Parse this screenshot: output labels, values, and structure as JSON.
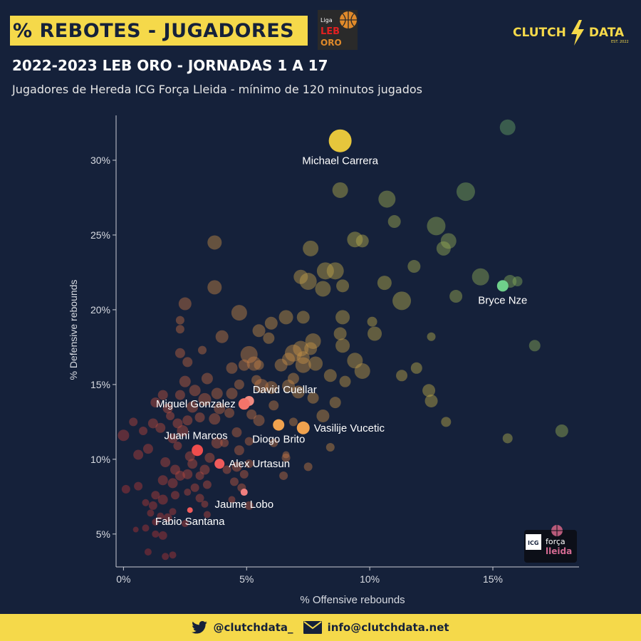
{
  "header": {
    "title": "% REBOTES - JUGADORES",
    "headline": "2022-2023 LEB ORO - JORNADAS 1 A 17",
    "subtitle": "Jugadores de Hereda ICG Força Lleida - mínimo de 120 minutos jugados"
  },
  "league_logo": {
    "line1": "Liga",
    "line2": "LEB",
    "line3": "ORO",
    "icon": "basketball-icon"
  },
  "brand": {
    "left": "CLUTCH",
    "right": "DATA",
    "sub": "EST. 2022",
    "icon": "lightning-bolt-icon"
  },
  "team_logo": {
    "line1": "ICG",
    "line2": "força",
    "line3": "lleida",
    "icon": "basketball-icon"
  },
  "footer": {
    "twitter": "@clutchdata_",
    "email": "info@clutchdata.net",
    "twitter_icon": "twitter-bird-icon",
    "email_icon": "envelope-icon"
  },
  "colors": {
    "accent": "#f5d94a",
    "background": "#15213a",
    "highlight_yellow": "#e6c63c"
  },
  "chart_data": {
    "type": "scatter",
    "xlabel": "% Offensive rebounds",
    "ylabel": "% Defensive rebounds",
    "xlim": [
      -0.3,
      18.5
    ],
    "ylim": [
      2.8,
      33
    ],
    "x_ticks": [
      {
        "value": 0,
        "label": "0%"
      },
      {
        "value": 5,
        "label": "5%"
      },
      {
        "value": 10,
        "label": "10%"
      },
      {
        "value": 15,
        "label": "15%"
      }
    ],
    "y_ticks": [
      {
        "value": 5,
        "label": "5%"
      },
      {
        "value": 10,
        "label": "10%"
      },
      {
        "value": 15,
        "label": "15%"
      },
      {
        "value": 20,
        "label": "20%"
      },
      {
        "value": 25,
        "label": "25%"
      },
      {
        "value": 30,
        "label": "30%"
      }
    ],
    "grid": false,
    "highlighted": [
      {
        "name": "Michael Carrera",
        "x": 8.8,
        "y": 31.3,
        "size": 16,
        "color": "#e6c63c",
        "label_pos": "below"
      },
      {
        "name": "Bryce Nze",
        "x": 15.4,
        "y": 21.6,
        "size": 8,
        "color": "#6fcf8a",
        "label_pos": "below"
      },
      {
        "name": "David Cuellar",
        "x": 5.1,
        "y": 13.9,
        "size": 7,
        "color": "#f08a80",
        "label_pos": "above-right"
      },
      {
        "name": "Miguel Gonzalez",
        "x": 4.9,
        "y": 13.7,
        "size": 8,
        "color": "#f2746a",
        "label_pos": "left"
      },
      {
        "name": "Vasilije Vucetic",
        "x": 7.3,
        "y": 12.1,
        "size": 9,
        "color": "#f0a24e",
        "label_pos": "right"
      },
      {
        "name": "Diogo Brito",
        "x": 6.3,
        "y": 12.3,
        "size": 8,
        "color": "#f0a24e",
        "label_pos": "below"
      },
      {
        "name": "Juani Marcos",
        "x": 3.0,
        "y": 10.6,
        "size": 8,
        "color": "#ef4d4d",
        "label_pos": "above-left"
      },
      {
        "name": "Alex Urtasun",
        "x": 3.9,
        "y": 9.7,
        "size": 7,
        "color": "#ef5b5b",
        "label_pos": "right"
      },
      {
        "name": "Jaume Lobo",
        "x": 4.9,
        "y": 7.8,
        "size": 5,
        "color": "#f07f7f",
        "label_pos": "below"
      },
      {
        "name": "Fabio Santana",
        "x": 2.7,
        "y": 6.6,
        "size": 4,
        "color": "#ef5b5b",
        "label_pos": "below"
      }
    ],
    "background_points": [
      [
        15.6,
        32.2,
        11
      ],
      [
        10.7,
        27.4,
        12
      ],
      [
        13.9,
        27.9,
        13
      ],
      [
        8.8,
        28.0,
        11
      ],
      [
        11.0,
        25.9,
        9
      ],
      [
        12.7,
        25.6,
        13
      ],
      [
        13.2,
        24.6,
        11
      ],
      [
        13.0,
        24.1,
        10
      ],
      [
        9.4,
        24.7,
        11
      ],
      [
        9.7,
        24.6,
        9
      ],
      [
        7.6,
        24.1,
        11
      ],
      [
        8.2,
        22.6,
        12
      ],
      [
        8.6,
        22.6,
        12
      ],
      [
        7.2,
        22.2,
        10
      ],
      [
        7.5,
        21.9,
        12
      ],
      [
        8.9,
        21.6,
        9
      ],
      [
        8.1,
        21.4,
        11
      ],
      [
        10.6,
        21.8,
        10
      ],
      [
        11.8,
        22.9,
        9
      ],
      [
        14.5,
        22.2,
        12
      ],
      [
        16.0,
        21.9,
        7
      ],
      [
        13.5,
        20.9,
        9
      ],
      [
        11.3,
        20.6,
        13
      ],
      [
        15.7,
        21.9,
        9
      ],
      [
        3.7,
        24.5,
        10
      ],
      [
        3.7,
        21.5,
        10
      ],
      [
        2.5,
        20.4,
        9
      ],
      [
        4.7,
        19.8,
        11
      ],
      [
        2.3,
        19.3,
        6
      ],
      [
        2.3,
        18.7,
        6
      ],
      [
        4.0,
        18.2,
        9
      ],
      [
        5.5,
        18.6,
        9
      ],
      [
        6.0,
        19.1,
        9
      ],
      [
        6.6,
        19.5,
        10
      ],
      [
        7.3,
        19.5,
        9
      ],
      [
        8.9,
        19.5,
        10
      ],
      [
        10.1,
        19.2,
        7
      ],
      [
        10.2,
        18.4,
        10
      ],
      [
        8.8,
        18.4,
        9
      ],
      [
        7.7,
        17.9,
        11
      ],
      [
        7.2,
        17.4,
        11
      ],
      [
        6.9,
        17.1,
        12
      ],
      [
        7.6,
        17.4,
        9
      ],
      [
        8.9,
        17.6,
        10
      ],
      [
        7.3,
        16.8,
        9
      ],
      [
        7.3,
        16.3,
        11
      ],
      [
        6.7,
        16.7,
        9
      ],
      [
        5.9,
        18.1,
        8
      ],
      [
        2.3,
        17.1,
        7
      ],
      [
        3.2,
        17.3,
        6
      ],
      [
        5.1,
        17.0,
        12
      ],
      [
        5.3,
        16.4,
        10
      ],
      [
        4.9,
        16.3,
        8
      ],
      [
        4.4,
        16.1,
        8
      ],
      [
        5.5,
        16.3,
        7
      ],
      [
        6.4,
        16.3,
        9
      ],
      [
        6.9,
        15.4,
        8
      ],
      [
        7.8,
        16.4,
        10
      ],
      [
        9.4,
        16.6,
        11
      ],
      [
        9.7,
        15.9,
        11
      ],
      [
        8.4,
        15.6,
        9
      ],
      [
        9.0,
        15.2,
        8
      ],
      [
        11.3,
        15.6,
        8
      ],
      [
        11.9,
        16.1,
        8
      ],
      [
        12.4,
        14.6,
        9
      ],
      [
        12.5,
        13.9,
        9
      ],
      [
        12.5,
        18.2,
        6
      ],
      [
        16.7,
        17.6,
        8
      ],
      [
        8.6,
        13.8,
        8
      ],
      [
        8.1,
        12.9,
        9
      ],
      [
        7.7,
        14.1,
        8
      ],
      [
        7.1,
        14.5,
        9
      ],
      [
        6.7,
        14.9,
        9
      ],
      [
        6.0,
        14.8,
        9
      ],
      [
        5.6,
        14.9,
        10
      ],
      [
        5.4,
        15.3,
        7
      ],
      [
        4.7,
        15.0,
        7
      ],
      [
        4.4,
        14.4,
        8
      ],
      [
        3.8,
        14.4,
        8
      ],
      [
        3.3,
        14.0,
        9
      ],
      [
        2.9,
        14.6,
        8
      ],
      [
        2.6,
        16.5,
        7
      ],
      [
        3.4,
        15.4,
        8
      ],
      [
        2.5,
        15.2,
        8
      ],
      [
        2.3,
        14.3,
        7
      ],
      [
        1.6,
        14.3,
        7
      ],
      [
        1.3,
        13.8,
        7
      ],
      [
        1.8,
        13.4,
        7
      ],
      [
        2.8,
        13.5,
        8
      ],
      [
        3.9,
        13.4,
        8
      ],
      [
        4.3,
        13.1,
        7
      ],
      [
        5.2,
        13.0,
        7
      ],
      [
        5.5,
        12.6,
        8
      ],
      [
        6.1,
        13.6,
        7
      ],
      [
        3.7,
        12.7,
        8
      ],
      [
        3.1,
        12.8,
        7
      ],
      [
        2.6,
        12.6,
        7
      ],
      [
        2.2,
        12.4,
        7
      ],
      [
        1.5,
        12.1,
        7
      ],
      [
        1.2,
        12.4,
        7
      ],
      [
        0.8,
        11.9,
        6
      ],
      [
        2.0,
        11.4,
        7
      ],
      [
        2.4,
        11.9,
        8
      ],
      [
        3.8,
        11.1,
        8
      ],
      [
        4.6,
        11.8,
        7
      ],
      [
        5.1,
        11.2,
        6
      ],
      [
        0.0,
        11.6,
        8
      ],
      [
        1.0,
        10.7,
        7
      ],
      [
        0.6,
        10.3,
        7
      ],
      [
        2.2,
        10.9,
        6
      ],
      [
        2.7,
        10.2,
        7
      ],
      [
        3.5,
        10.1,
        7
      ],
      [
        4.1,
        11.1,
        6
      ],
      [
        4.7,
        10.6,
        7
      ],
      [
        6.1,
        11.1,
        6
      ],
      [
        6.6,
        10.1,
        6
      ],
      [
        1.7,
        9.8,
        7
      ],
      [
        2.1,
        9.3,
        7
      ],
      [
        2.8,
        9.7,
        7
      ],
      [
        3.3,
        9.3,
        7
      ],
      [
        4.2,
        9.3,
        6
      ],
      [
        4.6,
        9.5,
        7
      ],
      [
        5.1,
        9.7,
        6
      ],
      [
        2.3,
        8.9,
        7
      ],
      [
        2.6,
        9.0,
        7
      ],
      [
        3.1,
        8.9,
        6
      ],
      [
        1.6,
        8.6,
        7
      ],
      [
        2.0,
        8.4,
        7
      ],
      [
        2.9,
        8.1,
        6
      ],
      [
        3.4,
        8.3,
        6
      ],
      [
        4.5,
        8.5,
        6
      ],
      [
        4.8,
        8.1,
        6
      ],
      [
        4.9,
        9.0,
        6
      ],
      [
        0.6,
        8.2,
        6
      ],
      [
        0.1,
        8.0,
        6
      ],
      [
        1.3,
        7.6,
        6
      ],
      [
        1.6,
        7.3,
        7
      ],
      [
        2.1,
        7.6,
        6
      ],
      [
        2.6,
        7.8,
        5
      ],
      [
        3.1,
        7.4,
        6
      ],
      [
        3.3,
        7.0,
        5
      ],
      [
        4.4,
        7.3,
        5
      ],
      [
        0.9,
        7.1,
        5
      ],
      [
        1.2,
        6.9,
        6
      ],
      [
        2.0,
        6.5,
        5
      ],
      [
        3.4,
        6.3,
        5
      ],
      [
        5.1,
        6.9,
        6
      ],
      [
        1.1,
        6.4,
        5
      ],
      [
        1.5,
        6.2,
        5
      ],
      [
        1.8,
        6.1,
        6
      ],
      [
        0.9,
        5.4,
        5
      ],
      [
        0.5,
        5.3,
        4
      ],
      [
        1.3,
        5.8,
        5
      ],
      [
        2.5,
        5.7,
        5
      ],
      [
        1.3,
        5.0,
        5
      ],
      [
        1.6,
        4.9,
        6
      ],
      [
        1.0,
        3.8,
        5
      ],
      [
        1.7,
        3.5,
        5
      ],
      [
        2.0,
        3.6,
        5
      ],
      [
        6.5,
        8.9,
        6
      ],
      [
        7.5,
        9.5,
        6
      ],
      [
        8.4,
        10.8,
        6
      ],
      [
        15.6,
        11.4,
        7
      ],
      [
        17.8,
        11.9,
        9
      ],
      [
        13.1,
        12.5,
        7
      ],
      [
        6.9,
        12.5,
        6
      ],
      [
        1.9,
        12.9,
        6
      ],
      [
        0.4,
        12.5,
        6
      ],
      [
        6.6,
        10.3,
        5
      ]
    ]
  }
}
